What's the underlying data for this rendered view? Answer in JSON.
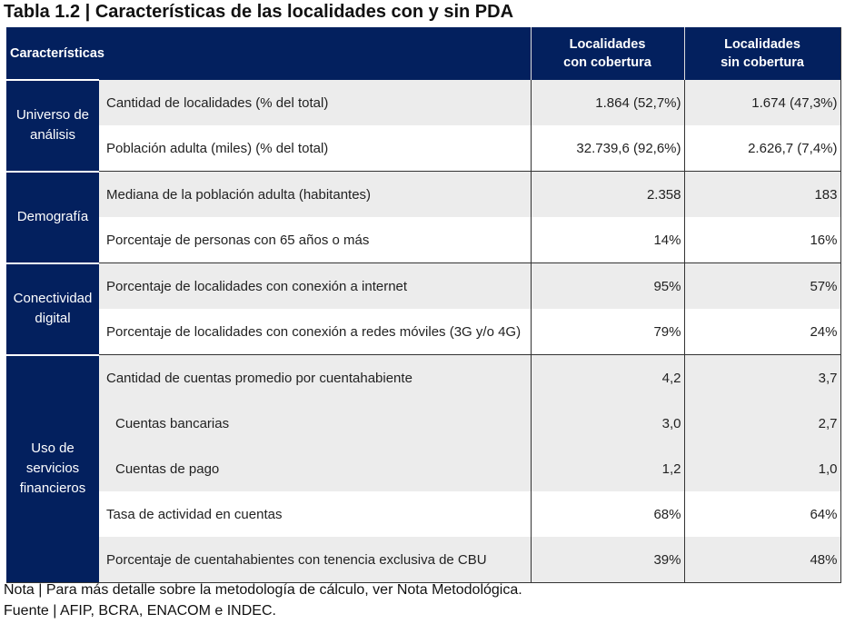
{
  "title": "Tabla 1.2 | Características de las localidades con y sin PDA",
  "header": {
    "characteristics": "Características",
    "col1": [
      "Localidades",
      "con cobertura"
    ],
    "col2": [
      "Localidades",
      "sin cobertura"
    ]
  },
  "groups": [
    {
      "label": [
        "Universo de",
        "análisis"
      ],
      "rows": [
        {
          "label": "Cantidad de localidades (% del total)",
          "con": "1.864 (52,7%)",
          "sin": "1.674 (47,3%)"
        },
        {
          "label": "Población adulta (miles) (% del total)",
          "con": "32.739,6 (92,6%)",
          "sin": "2.626,7 (7,4%)"
        }
      ]
    },
    {
      "label": [
        "Demografía"
      ],
      "rows": [
        {
          "label": "Mediana de la población adulta (habitantes)",
          "con": "2.358",
          "sin": "183"
        },
        {
          "label": "Porcentaje de personas con 65 años o más",
          "con": "14%",
          "sin": "16%"
        }
      ]
    },
    {
      "label": [
        "Conectividad",
        "digital"
      ],
      "rows": [
        {
          "label": "Porcentaje de localidades con conexión a internet",
          "con": "95%",
          "sin": "57%"
        },
        {
          "label": "Porcentaje de localidades con conexión a redes móviles (3G y/o 4G)",
          "con": "79%",
          "sin": "24%"
        }
      ]
    },
    {
      "label": [
        "Uso de",
        "servicios",
        "financieros"
      ],
      "rows": [
        {
          "label": "Cantidad de cuentas promedio por cuentahabiente",
          "con": "4,2",
          "sin": "3,7"
        },
        {
          "label": "Cuentas bancarias",
          "con": "3,0",
          "sin": "2,7"
        },
        {
          "label": "Cuentas de pago",
          "con": "1,2",
          "sin": "1,0"
        },
        {
          "label": "Tasa de actividad en cuentas",
          "con": "68%",
          "sin": "64%"
        },
        {
          "label": "Porcentaje de cuentahabientes con tenencia exclusiva de CBU",
          "con": "39%",
          "sin": "48%"
        }
      ]
    }
  ],
  "note": "Nota | Para más detalle sobre la metodología de cálculo, ver Nota Metodológica.",
  "source": "Fuente | AFIP, BCRA, ENACOM e INDEC.",
  "colors": {
    "header_bg": "#03205e",
    "row_gray": "#ececec"
  }
}
